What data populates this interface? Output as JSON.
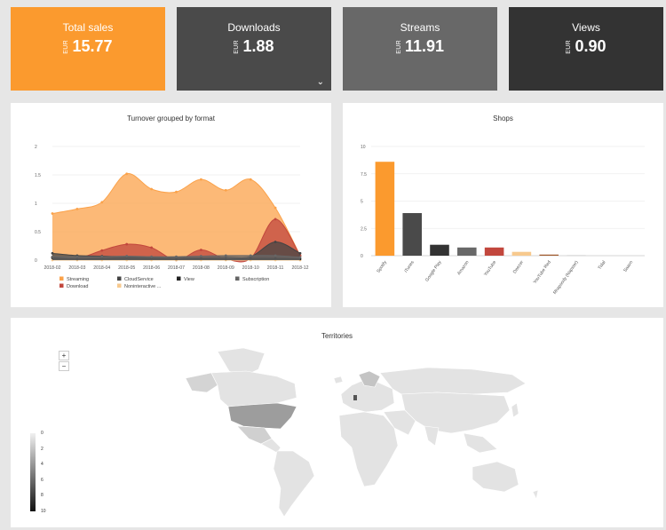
{
  "tiles": [
    {
      "label": "Total sales",
      "currency": "EUR",
      "value": "15.77",
      "color": "#fb9a2e"
    },
    {
      "label": "Downloads",
      "currency": "EUR",
      "value": "1.88",
      "color": "#4a4a4a"
    },
    {
      "label": "Streams",
      "currency": "EUR",
      "value": "11.91",
      "color": "#686868"
    },
    {
      "label": "Views",
      "currency": "EUR",
      "value": "0.90",
      "color": "#333333"
    }
  ],
  "chart_data": [
    {
      "type": "area",
      "title": "Turnover grouped by format",
      "x": [
        "2018-02",
        "2018-03",
        "2018-04",
        "2018-05",
        "2018-06",
        "2018-07",
        "2018-08",
        "2018-09",
        "2018-10",
        "2018-11",
        "2018-12"
      ],
      "ylim": [
        0,
        2
      ],
      "yticks": [
        "0",
        "0.5",
        "1",
        "1.5",
        "2"
      ],
      "series": [
        {
          "name": "Streaming",
          "color": "#fba24a",
          "values": [
            0.82,
            0.9,
            1.02,
            1.52,
            1.25,
            1.2,
            1.42,
            1.23,
            1.42,
            0.92,
            0.08
          ]
        },
        {
          "name": "Download",
          "color": "#c2473d",
          "values": [
            0.05,
            0.03,
            0.17,
            0.28,
            0.22,
            0.0,
            0.18,
            0.02,
            0.03,
            0.72,
            0.08
          ]
        },
        {
          "name": "CloudService",
          "color": "#444444",
          "values": [
            0.12,
            0.08,
            0.07,
            0.06,
            0.05,
            0.05,
            0.04,
            0.05,
            0.06,
            0.32,
            0.12
          ]
        },
        {
          "name": "Noninteractive ...",
          "color": "#f7c98e",
          "values": [
            0.0,
            0.0,
            0.0,
            0.0,
            0.0,
            0.0,
            0.0,
            0.0,
            0.0,
            0.0,
            0.0
          ]
        },
        {
          "name": "View",
          "color": "#222222",
          "values": [
            0.04,
            0.02,
            0.03,
            0.04,
            0.03,
            0.02,
            0.03,
            0.02,
            0.03,
            0.03,
            0.02
          ]
        },
        {
          "name": "Subscription",
          "color": "#666666",
          "values": [
            0.06,
            0.06,
            0.06,
            0.07,
            0.06,
            0.06,
            0.07,
            0.08,
            0.08,
            0.08,
            0.05
          ]
        }
      ]
    },
    {
      "type": "bar",
      "title": "Shops",
      "categories": [
        "Spotify",
        "iTunes",
        "Google Play",
        "Amazon",
        "YouTube",
        "Deezer",
        "YouTube Red",
        "Rhapsody (Napster)",
        "Tidal",
        "Saavn"
      ],
      "values": [
        8.6,
        3.9,
        1.0,
        0.75,
        0.75,
        0.35,
        0.1,
        0.02,
        0.0,
        0.0
      ],
      "colors": [
        "#fb9a2e",
        "#4a4a4a",
        "#333333",
        "#686868",
        "#c2473d",
        "#f7c98e",
        "#a05a2c",
        "#b0b0b0",
        "#b0b0b0",
        "#b0b0b0"
      ],
      "ylim": [
        0,
        10
      ],
      "yticks": [
        "0",
        "2.5",
        "5",
        "7.5",
        "10"
      ]
    }
  ],
  "map": {
    "title": "Territories",
    "zoom_in": "+",
    "zoom_out": "−",
    "legend_ticks": [
      "0",
      "2",
      "4",
      "6",
      "8",
      "10"
    ]
  }
}
